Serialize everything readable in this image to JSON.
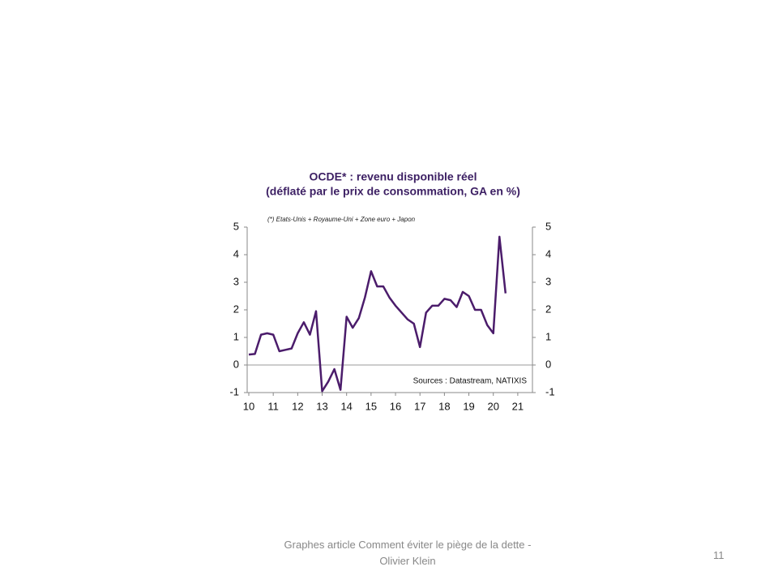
{
  "chart_data": {
    "type": "line",
    "title": "OCDE* : revenu disponible réel",
    "subtitle": "(déflaté par le prix de consommation, GA en %)",
    "note": "(*) Etats-Unis + Royaume-Uni + Zone euro + Japon",
    "source": "Sources : Datastream, NATIXIS",
    "x": [
      10,
      10.25,
      10.5,
      10.75,
      11,
      11.25,
      11.5,
      11.75,
      12,
      12.25,
      12.5,
      12.75,
      13,
      13.25,
      13.5,
      13.75,
      14,
      14.25,
      14.5,
      14.75,
      15,
      15.25,
      15.5,
      15.75,
      16,
      16.25,
      16.5,
      16.75,
      17,
      17.25,
      17.5,
      17.75,
      18,
      18.25,
      18.5,
      18.75,
      19,
      19.25,
      19.5,
      19.75,
      20,
      20.25,
      20.5
    ],
    "series": [
      {
        "color": "#4b1c6b",
        "values": [
          0.38,
          0.4,
          1.1,
          1.15,
          1.1,
          0.5,
          0.55,
          0.6,
          1.15,
          1.55,
          1.1,
          1.95,
          -0.95,
          -0.6,
          -0.15,
          -0.9,
          1.75,
          1.35,
          1.7,
          2.45,
          3.4,
          2.85,
          2.85,
          2.45,
          2.15,
          1.9,
          1.65,
          1.5,
          0.65,
          1.9,
          2.15,
          2.15,
          2.4,
          2.35,
          2.1,
          2.65,
          2.5,
          2.0,
          2.0,
          1.45,
          1.15,
          4.65,
          2.6
        ]
      }
    ],
    "xlim": [
      10,
      21.6
    ],
    "xticks": [
      10,
      11,
      12,
      13,
      14,
      15,
      16,
      17,
      18,
      19,
      20,
      21
    ],
    "ylim": [
      -1,
      5
    ],
    "yticks": [
      -1,
      0,
      1,
      2,
      3,
      4,
      5
    ],
    "y2lim": [
      -1,
      5
    ],
    "y2ticks": [
      -1,
      0,
      1,
      2,
      3,
      4,
      5
    ]
  },
  "footer": {
    "text": "Graphes article Comment  éviter le piège de la dette - Olivier Klein",
    "page": "11"
  }
}
